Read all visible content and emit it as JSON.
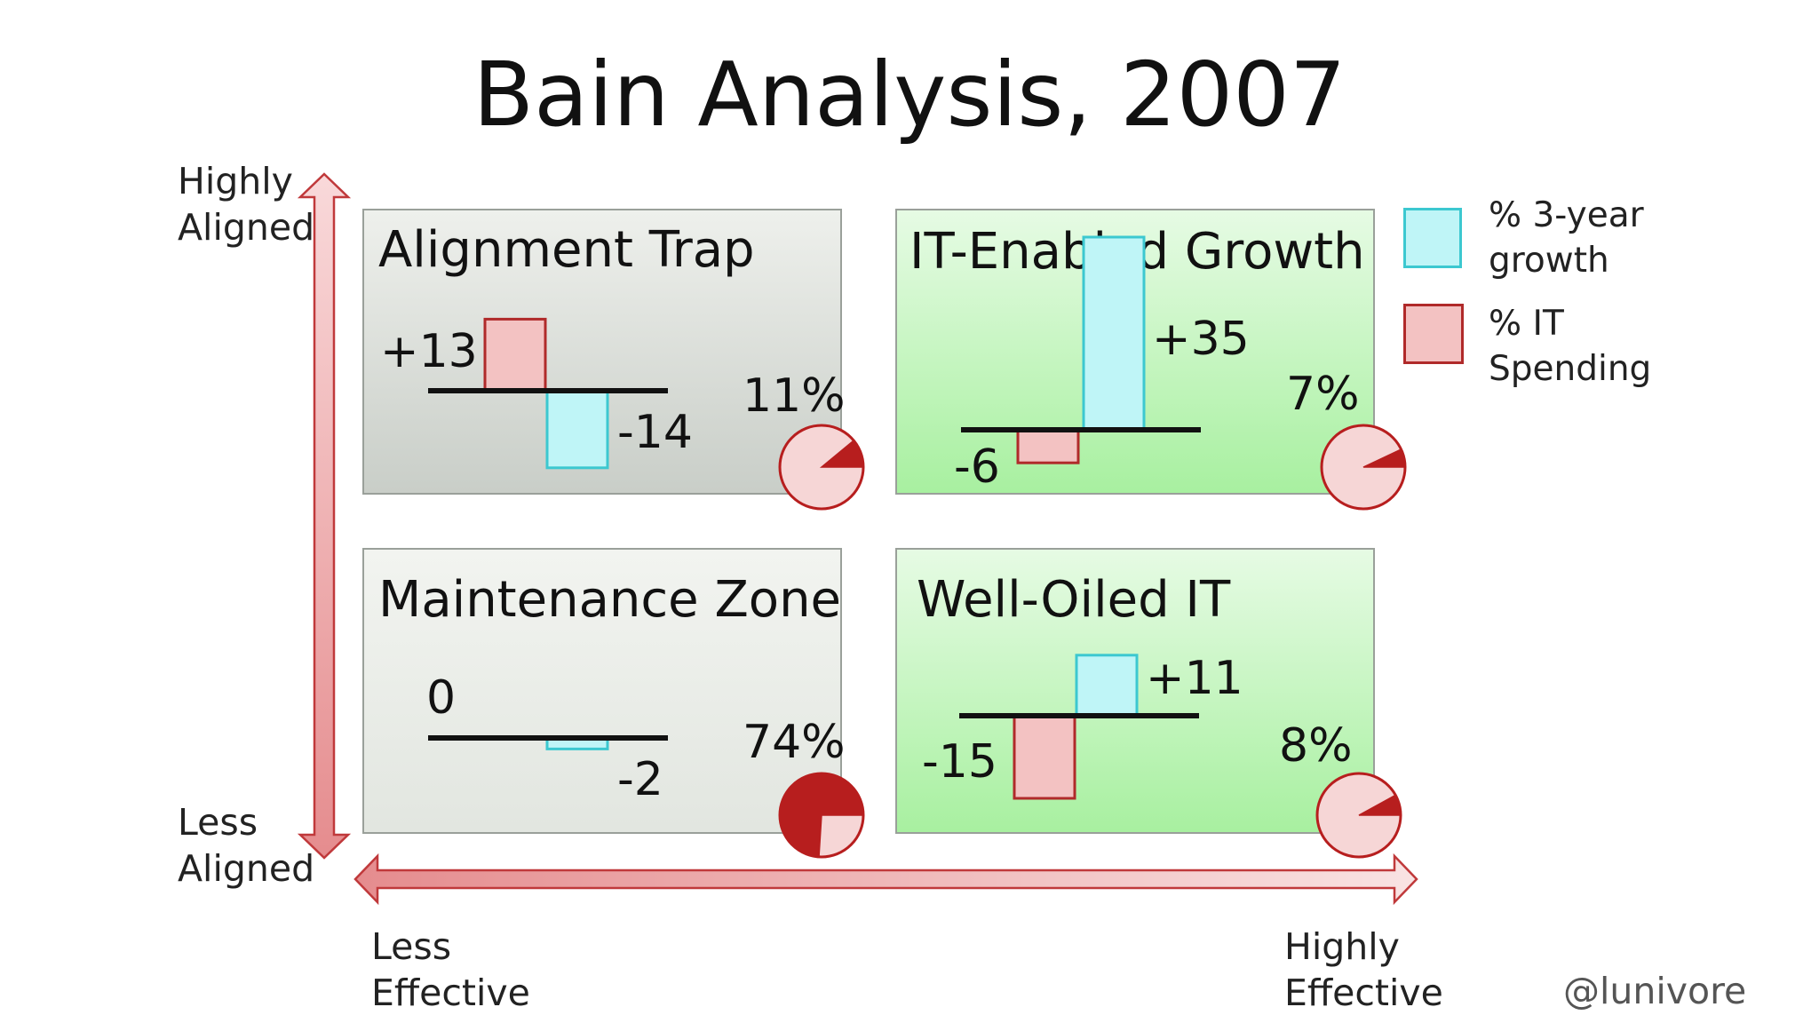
{
  "title": "Bain Analysis, 2007",
  "axes": {
    "y_high": [
      "Highly",
      "Aligned"
    ],
    "y_low": [
      "Less",
      "Aligned"
    ],
    "x_low": [
      "Less",
      "Effective"
    ],
    "x_high": [
      "Highly",
      "Effective"
    ]
  },
  "legend": {
    "growth": {
      "label_lines": [
        "% 3-year",
        "growth"
      ],
      "color": "#bff5f7"
    },
    "spending": {
      "label_lines": [
        "% IT",
        "Spending"
      ],
      "color": "#f3c2c2"
    }
  },
  "handle": "@lunivore",
  "colors": {
    "growth_fill": "#bff5f7",
    "growth_stroke": "#3cc8d0",
    "spend_fill": "#f3c2c2",
    "spend_stroke": "#b02a2a",
    "pie_fill": "#f6d6d6",
    "pie_slice": "#b71e1e",
    "arrow": "#c0393b"
  },
  "chart_data": {
    "type": "bar",
    "title": "Bain Analysis, 2007",
    "series": [
      {
        "name": "% 3-year growth"
      },
      {
        "name": "% IT Spending"
      }
    ],
    "quadrants": [
      {
        "name": "Alignment Trap",
        "it_spending": 13,
        "growth": -14,
        "share_pct": 11,
        "spending_label": "+13",
        "growth_label": "-14",
        "share_label": "11%"
      },
      {
        "name": "IT-Enabled Growth",
        "it_spending": -6,
        "growth": 35,
        "share_pct": 7,
        "spending_label": "-6",
        "growth_label": "+35",
        "share_label": "7%"
      },
      {
        "name": "Maintenance Zone",
        "it_spending": 0,
        "growth": -2,
        "share_pct": 74,
        "spending_label": "0",
        "growth_label": "-2",
        "share_label": "74%"
      },
      {
        "name": "Well-Oiled IT",
        "it_spending": -15,
        "growth": 11,
        "share_pct": 8,
        "spending_label": "-15",
        "growth_label": "+11",
        "share_label": "8%"
      }
    ]
  }
}
